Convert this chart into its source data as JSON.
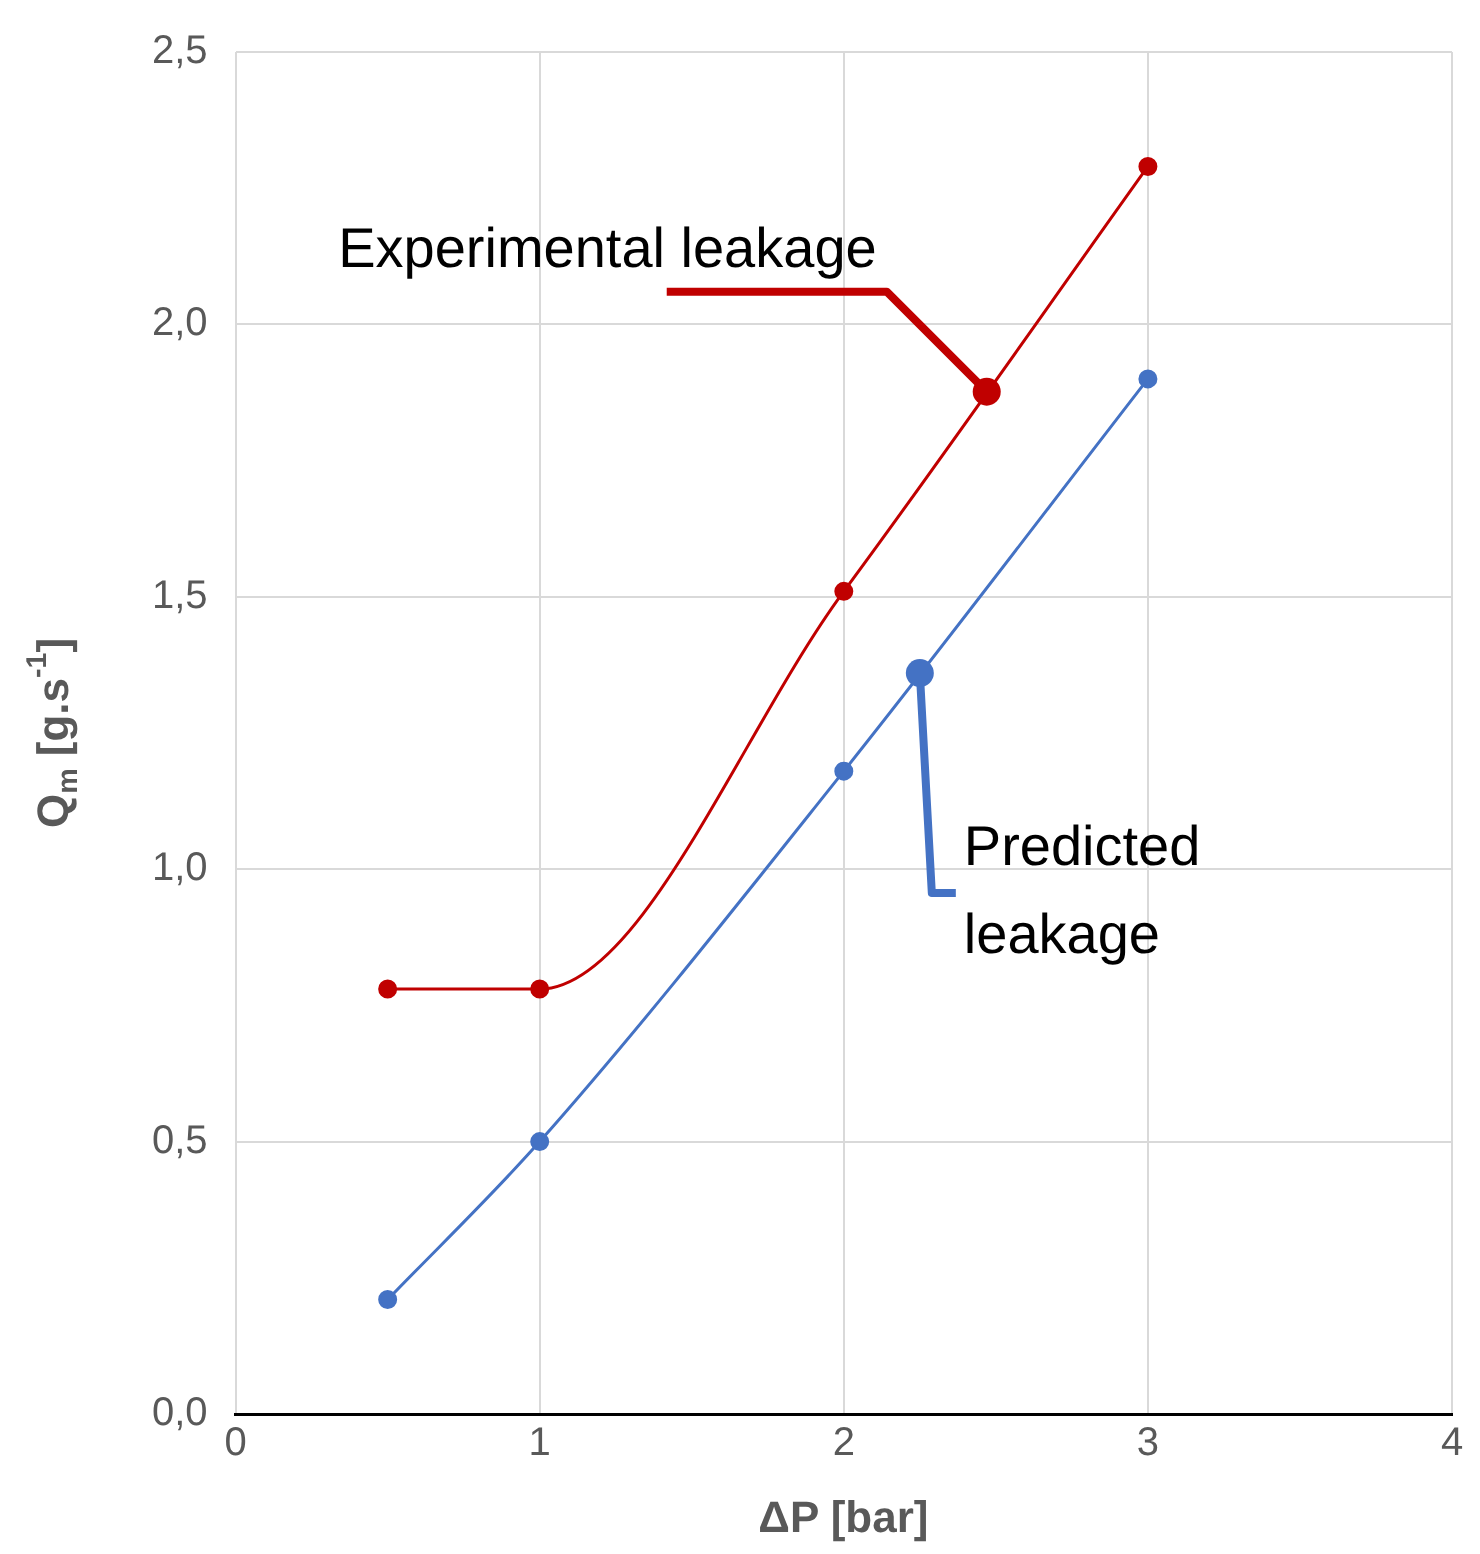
{
  "chart_data": {
    "type": "line",
    "xlabel": "ΔP [bar]",
    "ylabel": "Q$_{m}$ [g.s$^{-1}$]",
    "xlim": [
      0,
      4
    ],
    "xticks": [
      0,
      1,
      2,
      3,
      4
    ],
    "ylim": [
      0,
      2.5
    ],
    "yticks": [
      {
        "value": 0,
        "label": "0,0"
      },
      {
        "value": 0.5,
        "label": "0,5"
      },
      {
        "value": 1,
        "label": "1,0"
      },
      {
        "value": 1.5,
        "label": "1,5"
      },
      {
        "value": 2,
        "label": "2,0"
      },
      {
        "value": 2.5,
        "label": "2,5"
      }
    ],
    "grid": true,
    "marker": "circle",
    "line_style": "solid",
    "legend": false,
    "series": [
      {
        "name": "Experimental leakage",
        "color": "#c00000",
        "x": [
          0.5,
          1,
          2,
          3
        ],
        "values": [
          0.78,
          0.78,
          1.51,
          2.29
        ]
      },
      {
        "name": "Predicted leakage",
        "color": "#4472c4",
        "x": [
          0.5,
          1,
          2,
          3
        ],
        "values": [
          0.21,
          0.5,
          1.18,
          1.9
        ]
      }
    ]
  }
}
